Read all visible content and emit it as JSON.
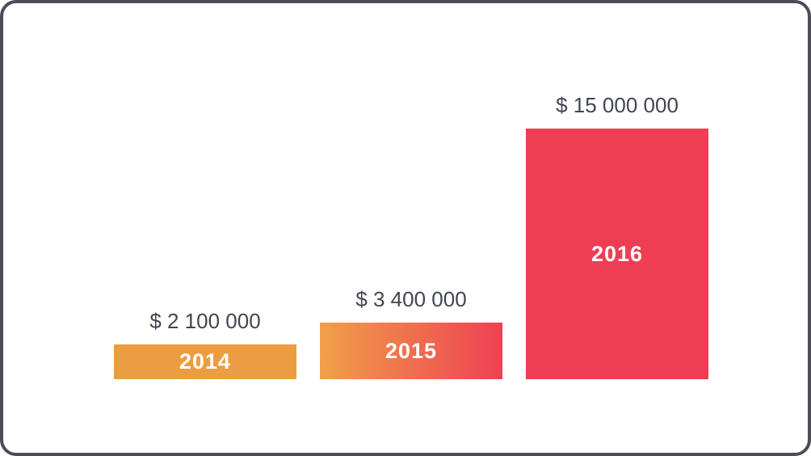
{
  "chart_data": {
    "type": "bar",
    "title": "",
    "xlabel": "",
    "ylabel": "",
    "categories": [
      "2014",
      "2015",
      "2016"
    ],
    "values": [
      2100000,
      3400000,
      15000000
    ],
    "value_labels": [
      "$ 2 100 000",
      "$ 3 400 000",
      "$ 15 000 000"
    ],
    "bar_colors": [
      [
        "#EC9D41",
        "#EC9D41"
      ],
      [
        "#F0A049",
        "#EE4053"
      ],
      [
        "#EE3E53",
        "#EE3E53"
      ]
    ],
    "ylim": [
      0,
      15000000
    ],
    "grid": false,
    "legend": false,
    "axes_visible": false,
    "bar_label_position": "inside-center"
  },
  "colors": {
    "frame_border": "#4D4B57",
    "background": "#FFFFFF",
    "value_label_text": "#414551",
    "year_label_text": "#FFFFFF"
  }
}
